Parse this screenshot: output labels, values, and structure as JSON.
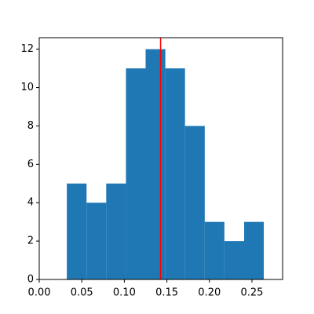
{
  "chart_data": {
    "type": "histogram",
    "bins": [
      0.0324,
      0.0556,
      0.0787,
      0.1019,
      0.125,
      0.1482,
      0.1713,
      0.1945,
      0.2176,
      0.2408,
      0.2639
    ],
    "values": [
      5,
      4,
      5,
      11,
      12,
      11,
      8,
      3,
      2,
      3
    ],
    "color": "#1f77b4",
    "vline": {
      "value": 0.1426,
      "color": "#ff0000"
    },
    "xlim": [
      0,
      0.286
    ],
    "xticks": [
      {
        "value": 0,
        "label": "0.00"
      },
      0.05,
      {
        "value": 0.1,
        "label": "0.10"
      },
      0.15,
      {
        "value": 0.2,
        "label": "0.20"
      },
      0.25
    ],
    "ylim": [
      0,
      12.6
    ],
    "yticks": [
      0,
      2,
      4,
      6,
      8,
      10,
      12
    ]
  }
}
